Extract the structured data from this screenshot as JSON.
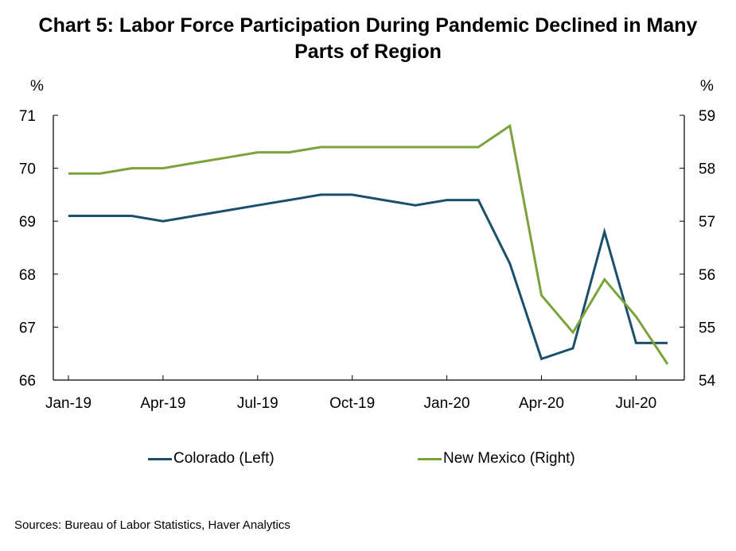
{
  "chart_data": {
    "type": "line",
    "title_line1": "Chart 5: Labor Force Participation During Pandemic Declined in Many",
    "title_line2": "Parts of Region",
    "y_left_unit": "%",
    "y_right_unit": "%",
    "x": [
      "Jan-19",
      "Feb-19",
      "Mar-19",
      "Apr-19",
      "May-19",
      "Jun-19",
      "Jul-19",
      "Aug-19",
      "Sep-19",
      "Oct-19",
      "Nov-19",
      "Dec-19",
      "Jan-20",
      "Feb-20",
      "Mar-20",
      "Apr-20",
      "May-20",
      "Jun-20",
      "Jul-20",
      "Aug-20"
    ],
    "x_tick_labels": [
      "Jan-19",
      "Apr-19",
      "Jul-19",
      "Oct-19",
      "Jan-20",
      "Apr-20",
      "Jul-20"
    ],
    "x_tick_indices": [
      0,
      3,
      6,
      9,
      12,
      15,
      18
    ],
    "y_left_ticks": [
      66,
      67,
      68,
      69,
      70,
      71
    ],
    "y_right_ticks": [
      54,
      55,
      56,
      57,
      58,
      59
    ],
    "ylim_left": [
      66,
      71
    ],
    "ylim_right": [
      54,
      59
    ],
    "series": [
      {
        "name": "Colorado (Left)",
        "axis": "left",
        "color": "#1b4f6b",
        "values": [
          69.1,
          69.1,
          69.1,
          69.0,
          69.1,
          69.2,
          69.3,
          69.4,
          69.5,
          69.5,
          69.4,
          69.3,
          69.4,
          69.4,
          68.2,
          66.4,
          66.6,
          68.8,
          66.7,
          66.7
        ]
      },
      {
        "name": "New Mexico (Right)",
        "axis": "right",
        "color": "#7aa43b",
        "values": [
          57.9,
          57.9,
          58.0,
          58.0,
          58.1,
          58.2,
          58.3,
          58.3,
          58.4,
          58.4,
          58.4,
          58.4,
          58.4,
          58.4,
          58.8,
          55.6,
          54.9,
          55.9,
          55.2,
          54.3
        ]
      }
    ],
    "legend_position": "bottom",
    "grid": false,
    "source": "Sources: Bureau of Labor Statistics, Haver Analytics"
  }
}
